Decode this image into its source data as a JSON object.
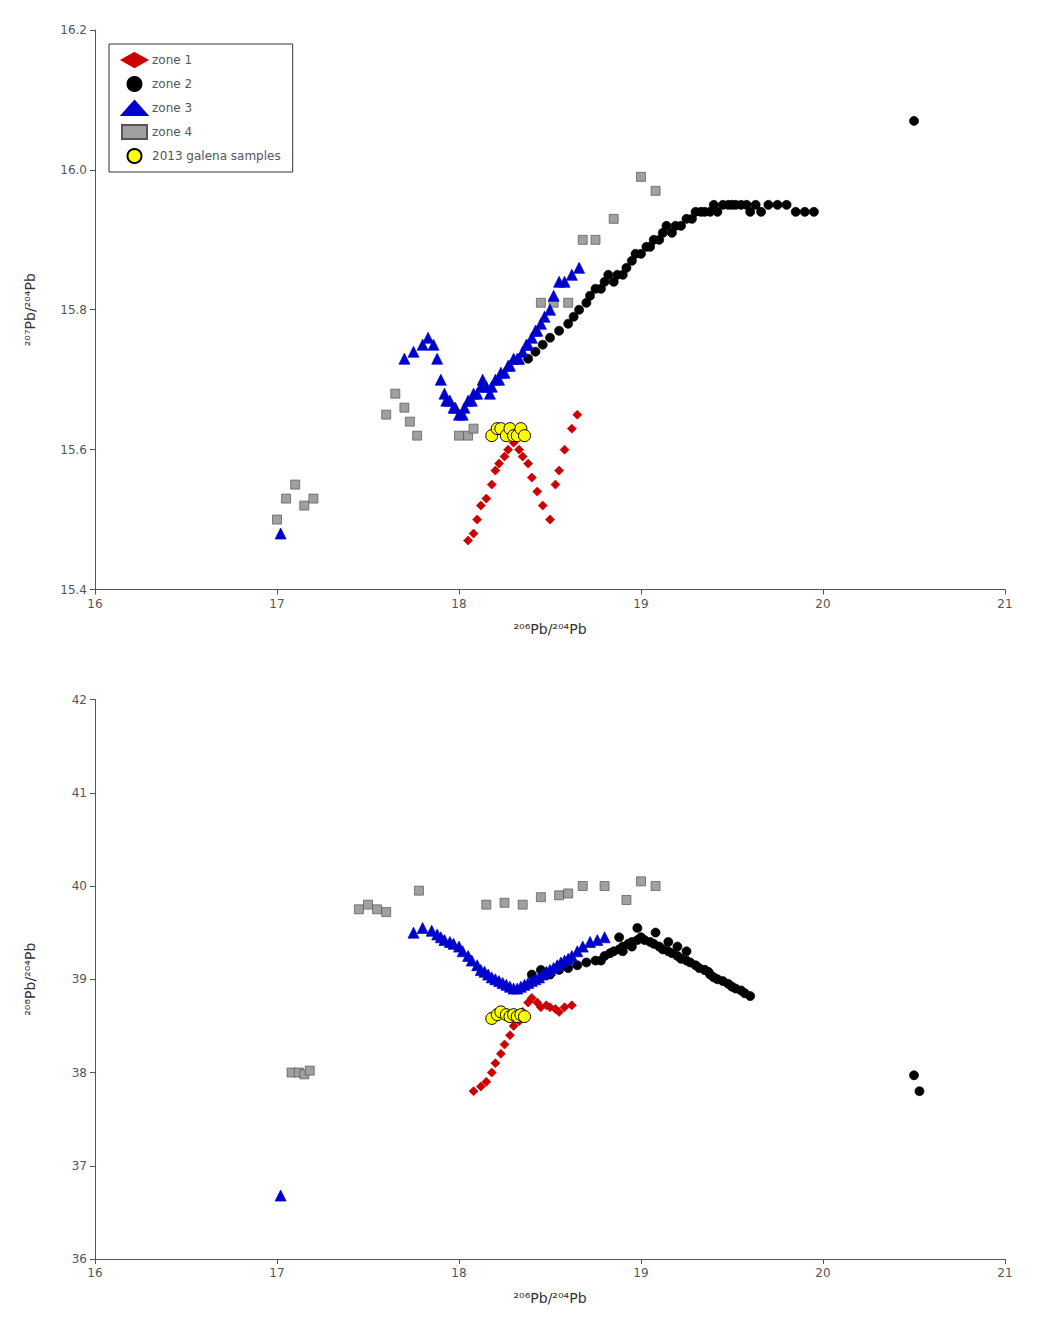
{
  "chart_data": [
    {
      "type": "scatter",
      "xlabel": "²⁰⁶Pb/²⁰⁴Pb",
      "ylabel": "²⁰⁷Pb/²⁰⁴Pb",
      "xlim": [
        16,
        21
      ],
      "ylim": [
        15.4,
        16.2
      ],
      "xticks": [
        16,
        17,
        18,
        19,
        20,
        21
      ],
      "yticks": [
        15.4,
        15.6,
        15.8,
        {
          "value": 16.0,
          "label": "16.0"
        },
        16.2
      ],
      "grid": false,
      "legend": "upper left",
      "series": [
        {
          "name": "zone 1",
          "color": "#cc0000",
          "marker": "diamond",
          "x": [
            18.05,
            18.08,
            18.1,
            18.12,
            18.15,
            18.18,
            18.2,
            18.22,
            18.25,
            18.27,
            18.3,
            18.33,
            18.35,
            18.38,
            18.4,
            18.43,
            18.46,
            18.5,
            18.53,
            18.55,
            18.58,
            18.62,
            18.65
          ],
          "values": [
            15.47,
            15.48,
            15.5,
            15.52,
            15.53,
            15.55,
            15.57,
            15.58,
            15.59,
            15.6,
            15.61,
            15.6,
            15.59,
            15.58,
            15.56,
            15.54,
            15.52,
            15.5,
            15.55,
            15.57,
            15.6,
            15.63,
            15.65
          ]
        },
        {
          "name": "zone 2",
          "color": "#000000",
          "marker": "circle",
          "x": [
            18.38,
            18.42,
            18.46,
            18.5,
            18.55,
            18.6,
            18.63,
            18.66,
            18.7,
            18.72,
            18.75,
            18.78,
            18.8,
            18.82,
            18.85,
            18.87,
            18.9,
            18.92,
            18.95,
            18.97,
            19.0,
            19.03,
            19.05,
            19.07,
            19.1,
            19.12,
            19.14,
            19.17,
            19.19,
            19.22,
            19.25,
            19.28,
            19.3,
            19.33,
            19.35,
            19.38,
            19.4,
            19.42,
            19.45,
            19.48,
            19.5,
            19.52,
            19.55,
            19.58,
            19.6,
            19.63,
            19.66,
            19.7,
            19.75,
            19.8,
            19.85,
            19.9,
            19.95,
            20.5
          ],
          "values": [
            15.73,
            15.74,
            15.75,
            15.76,
            15.77,
            15.78,
            15.79,
            15.8,
            15.81,
            15.82,
            15.83,
            15.83,
            15.84,
            15.85,
            15.84,
            15.85,
            15.85,
            15.86,
            15.87,
            15.88,
            15.88,
            15.89,
            15.89,
            15.9,
            15.9,
            15.91,
            15.92,
            15.91,
            15.92,
            15.92,
            15.93,
            15.93,
            15.94,
            15.94,
            15.94,
            15.94,
            15.95,
            15.94,
            15.95,
            15.95,
            15.95,
            15.95,
            15.95,
            15.95,
            15.94,
            15.95,
            15.94,
            15.95,
            15.95,
            15.95,
            15.94,
            15.94,
            15.94,
            16.07
          ]
        },
        {
          "name": "zone 3",
          "color": "#0000cc",
          "marker": "triangle",
          "x": [
            17.02,
            17.7,
            17.75,
            17.8,
            17.83,
            17.86,
            17.88,
            17.9,
            17.92,
            17.93,
            17.95,
            17.97,
            17.98,
            18.0,
            18.02,
            18.03,
            18.05,
            18.07,
            18.08,
            18.1,
            18.12,
            18.13,
            18.15,
            18.17,
            18.18,
            18.2,
            18.22,
            18.23,
            18.25,
            18.27,
            18.28,
            18.3,
            18.32,
            18.33,
            18.35,
            18.37,
            18.38,
            18.4,
            18.42,
            18.43,
            18.45,
            18.47,
            18.5,
            18.52,
            18.55,
            18.58,
            18.62,
            18.66
          ],
          "values": [
            15.48,
            15.73,
            15.74,
            15.75,
            15.76,
            15.75,
            15.73,
            15.7,
            15.68,
            15.67,
            15.67,
            15.66,
            15.66,
            15.65,
            15.65,
            15.66,
            15.67,
            15.67,
            15.68,
            15.68,
            15.69,
            15.7,
            15.69,
            15.68,
            15.69,
            15.7,
            15.7,
            15.71,
            15.71,
            15.72,
            15.72,
            15.73,
            15.73,
            15.73,
            15.74,
            15.75,
            15.75,
            15.76,
            15.77,
            15.77,
            15.78,
            15.79,
            15.8,
            15.82,
            15.84,
            15.84,
            15.85,
            15.86
          ]
        },
        {
          "name": "zone 4",
          "color": "#a0a0a0",
          "marker": "square",
          "x": [
            17.0,
            17.05,
            17.1,
            17.15,
            17.2,
            17.6,
            17.65,
            17.7,
            17.73,
            17.77,
            18.0,
            18.05,
            18.08,
            18.45,
            18.52,
            18.6,
            18.68,
            18.75,
            18.85,
            19.0,
            19.08
          ],
          "values": [
            15.5,
            15.53,
            15.55,
            15.52,
            15.53,
            15.65,
            15.68,
            15.66,
            15.64,
            15.62,
            15.62,
            15.62,
            15.63,
            15.81,
            15.81,
            15.81,
            15.9,
            15.9,
            15.93,
            15.99,
            15.97
          ]
        },
        {
          "name": "2013 galena samples",
          "color": "#ffff00",
          "marker": "circle",
          "x": [
            18.18,
            18.21,
            18.23,
            18.26,
            18.28,
            18.3,
            18.32,
            18.34,
            18.36
          ],
          "values": [
            15.62,
            15.63,
            15.63,
            15.62,
            15.63,
            15.62,
            15.62,
            15.63,
            15.62
          ]
        }
      ]
    },
    {
      "type": "scatter",
      "xlabel": "²⁰⁶Pb/²⁰⁴Pb",
      "ylabel": "²⁰⁸Pb/²⁰⁴Pb",
      "xlim": [
        16,
        21
      ],
      "ylim": [
        36,
        42
      ],
      "xticks": [
        16,
        17,
        18,
        19,
        20,
        21
      ],
      "yticks": [
        36,
        37,
        38,
        39,
        40,
        41,
        42
      ],
      "grid": false,
      "series": [
        {
          "name": "zone 1",
          "color": "#cc0000",
          "marker": "diamond",
          "x": [
            18.08,
            18.12,
            18.15,
            18.18,
            18.2,
            18.23,
            18.25,
            18.28,
            18.3,
            18.33,
            18.35,
            18.38,
            18.4,
            18.43,
            18.45,
            18.48,
            18.5,
            18.53,
            18.55,
            18.58,
            18.62
          ],
          "values": [
            37.8,
            37.85,
            37.9,
            38.0,
            38.1,
            38.2,
            38.3,
            38.4,
            38.5,
            38.55,
            38.65,
            38.75,
            38.8,
            38.75,
            38.7,
            38.72,
            38.7,
            38.68,
            38.65,
            38.7,
            38.72
          ]
        },
        {
          "name": "zone 2",
          "color": "#000000",
          "marker": "circle",
          "x": [
            18.4,
            18.45,
            18.5,
            18.55,
            18.6,
            18.65,
            18.7,
            18.75,
            18.8,
            18.83,
            18.85,
            18.88,
            18.9,
            18.93,
            18.95,
            18.98,
            19.0,
            19.02,
            19.05,
            19.07,
            19.1,
            19.12,
            19.15,
            19.17,
            19.2,
            19.22,
            19.25,
            19.27,
            19.3,
            19.32,
            19.35,
            19.37,
            19.38,
            19.4,
            19.42,
            19.45,
            19.48,
            19.5,
            19.52,
            19.55,
            19.57,
            19.6,
            19.15,
            19.2,
            19.25,
            19.08,
            18.98,
            18.88,
            18.78,
            18.9,
            18.95,
            19.35,
            20.5,
            20.53
          ],
          "values": [
            39.05,
            39.1,
            39.05,
            39.1,
            39.12,
            39.15,
            39.18,
            39.2,
            39.25,
            39.28,
            39.3,
            39.32,
            39.35,
            39.38,
            39.4,
            39.42,
            39.45,
            39.42,
            39.4,
            39.38,
            39.35,
            39.32,
            39.3,
            39.28,
            39.25,
            39.22,
            39.2,
            39.18,
            39.15,
            39.12,
            39.1,
            39.08,
            39.05,
            39.02,
            39.0,
            38.98,
            38.95,
            38.92,
            38.9,
            38.88,
            38.85,
            38.82,
            39.4,
            39.35,
            39.3,
            39.5,
            39.55,
            39.45,
            39.2,
            39.3,
            39.35,
            39.1,
            37.97,
            37.8
          ]
        },
        {
          "name": "zone 3",
          "color": "#0000cc",
          "marker": "triangle",
          "x": [
            17.02,
            17.75,
            17.8,
            17.85,
            17.88,
            17.9,
            17.92,
            17.95,
            17.97,
            18.0,
            18.02,
            18.05,
            18.07,
            18.1,
            18.12,
            18.14,
            18.16,
            18.18,
            18.2,
            18.22,
            18.24,
            18.26,
            18.28,
            18.3,
            18.32,
            18.34,
            18.36,
            18.38,
            18.4,
            18.42,
            18.44,
            18.46,
            18.48,
            18.5,
            18.52,
            18.54,
            18.56,
            18.58,
            18.6,
            18.62,
            18.65,
            18.68,
            18.72,
            18.76,
            18.8
          ],
          "values": [
            36.68,
            39.5,
            39.55,
            39.52,
            39.48,
            39.45,
            39.42,
            39.4,
            39.38,
            39.35,
            39.3,
            39.25,
            39.2,
            39.15,
            39.1,
            39.08,
            39.05,
            39.02,
            39.0,
            38.98,
            38.96,
            38.94,
            38.92,
            38.9,
            38.9,
            38.92,
            38.94,
            38.96,
            38.98,
            39.0,
            39.02,
            39.05,
            39.08,
            39.1,
            39.12,
            39.15,
            39.18,
            39.2,
            39.22,
            39.25,
            39.3,
            39.35,
            39.4,
            39.42,
            39.45
          ]
        },
        {
          "name": "zone 4",
          "color": "#a0a0a0",
          "marker": "square",
          "x": [
            17.08,
            17.12,
            17.15,
            17.18,
            17.45,
            17.5,
            17.55,
            17.6,
            17.78,
            18.15,
            18.25,
            18.35,
            18.45,
            18.55,
            18.6,
            18.68,
            18.8,
            18.92,
            19.0,
            19.08
          ],
          "values": [
            38.0,
            38.0,
            37.98,
            38.02,
            39.75,
            39.8,
            39.75,
            39.72,
            39.95,
            39.8,
            39.82,
            39.8,
            39.88,
            39.9,
            39.92,
            40.0,
            40.0,
            39.85,
            40.05,
            40.0
          ]
        },
        {
          "name": "2013 galena samples",
          "color": "#ffff00",
          "marker": "circle",
          "x": [
            18.18,
            18.21,
            18.23,
            18.26,
            18.28,
            18.3,
            18.32,
            18.34,
            18.36
          ],
          "values": [
            38.58,
            38.62,
            38.65,
            38.62,
            38.6,
            38.62,
            38.6,
            38.62,
            38.6
          ]
        }
      ]
    }
  ]
}
